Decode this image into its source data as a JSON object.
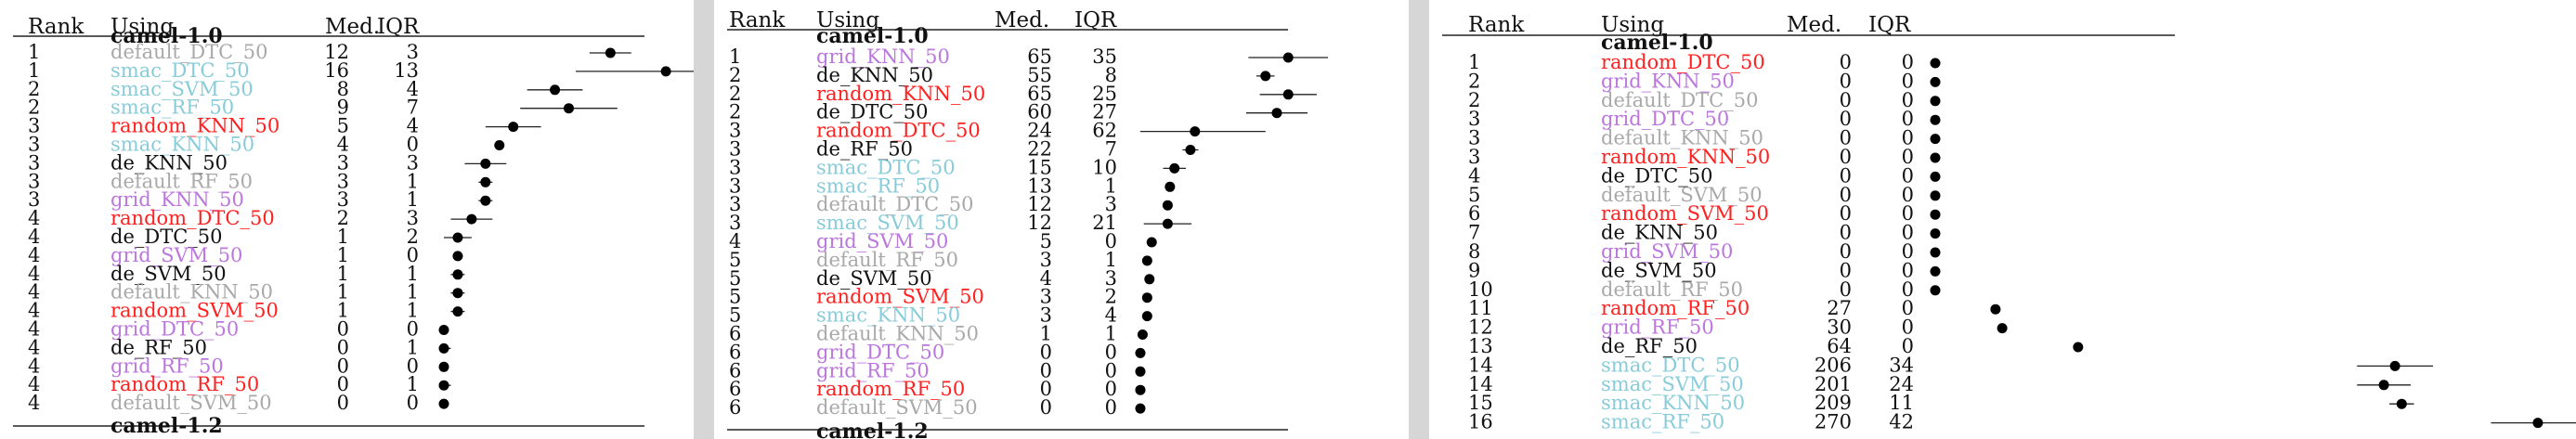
{
  "colors": {
    "default": "#a9a9a9",
    "smac": "#88ccd9",
    "random": "#ff2020",
    "grid": "#bb77dd",
    "de": "#111111"
  },
  "headers": {
    "rank": "Rank",
    "using": "Using",
    "med": "Med.",
    "iqr": "IQR"
  },
  "panels": [
    {
      "group": "camel-1.0",
      "footer_group": "camel-1.2",
      "chart_data": {
        "type": "table",
        "columns": [
          "Rank",
          "Using",
          "Med.",
          "IQR"
        ],
        "rows": [
          {
            "rank": "1",
            "using": "default_DTC_50",
            "family": "default",
            "med": 12,
            "iqr": 3
          },
          {
            "rank": "1",
            "using": "smac_DTC_50",
            "family": "smac",
            "med": 16,
            "iqr": 13
          },
          {
            "rank": "2",
            "using": "smac_SVM_50",
            "family": "smac",
            "med": 8,
            "iqr": 4
          },
          {
            "rank": "2",
            "using": "smac_RF_50",
            "family": "smac",
            "med": 9,
            "iqr": 7
          },
          {
            "rank": "3",
            "using": "random_KNN_50",
            "family": "random",
            "med": 5,
            "iqr": 4
          },
          {
            "rank": "3",
            "using": "smac_KNN_50",
            "family": "smac",
            "med": 4,
            "iqr": 0
          },
          {
            "rank": "3",
            "using": "de_KNN_50",
            "family": "de",
            "med": 3,
            "iqr": 3
          },
          {
            "rank": "3",
            "using": "default_RF_50",
            "family": "default",
            "med": 3,
            "iqr": 1
          },
          {
            "rank": "3",
            "using": "grid_KNN_50",
            "family": "grid",
            "med": 3,
            "iqr": 1
          },
          {
            "rank": "4",
            "using": "random_DTC_50",
            "family": "random",
            "med": 2,
            "iqr": 3
          },
          {
            "rank": "4",
            "using": "de_DTC_50",
            "family": "de",
            "med": 1,
            "iqr": 2
          },
          {
            "rank": "4",
            "using": "grid_SVM_50",
            "family": "grid",
            "med": 1,
            "iqr": 0
          },
          {
            "rank": "4",
            "using": "de_SVM_50",
            "family": "de",
            "med": 1,
            "iqr": 1
          },
          {
            "rank": "4",
            "using": "default_KNN_50",
            "family": "default",
            "med": 1,
            "iqr": 1
          },
          {
            "rank": "4",
            "using": "random_SVM_50",
            "family": "random",
            "med": 1,
            "iqr": 1
          },
          {
            "rank": "4",
            "using": "grid_DTC_50",
            "family": "grid",
            "med": 0,
            "iqr": 0
          },
          {
            "rank": "4",
            "using": "de_RF_50",
            "family": "de",
            "med": 0,
            "iqr": 1
          },
          {
            "rank": "4",
            "using": "grid_RF_50",
            "family": "grid",
            "med": 0,
            "iqr": 0
          },
          {
            "rank": "4",
            "using": "random_RF_50",
            "family": "random",
            "med": 0,
            "iqr": 1
          },
          {
            "rank": "4",
            "using": "default_SVM_50",
            "family": "default",
            "med": 0,
            "iqr": 0
          }
        ]
      }
    },
    {
      "group": "camel-1.0",
      "footer_group": "camel-1.2",
      "chart_data": {
        "type": "table",
        "columns": [
          "Rank",
          "Using",
          "Med.",
          "IQR"
        ],
        "rows": [
          {
            "rank": "1",
            "using": "grid_KNN_50",
            "family": "grid",
            "med": 65,
            "iqr": 35
          },
          {
            "rank": "2",
            "using": "de_KNN_50",
            "family": "de",
            "med": 55,
            "iqr": 8
          },
          {
            "rank": "2",
            "using": "random_KNN_50",
            "family": "random",
            "med": 65,
            "iqr": 25
          },
          {
            "rank": "2",
            "using": "de_DTC_50",
            "family": "de",
            "med": 60,
            "iqr": 27
          },
          {
            "rank": "3",
            "using": "random_DTC_50",
            "family": "random",
            "med": 24,
            "iqr": 62
          },
          {
            "rank": "3",
            "using": "de_RF_50",
            "family": "de",
            "med": 22,
            "iqr": 7
          },
          {
            "rank": "3",
            "using": "smac_DTC_50",
            "family": "smac",
            "med": 15,
            "iqr": 10
          },
          {
            "rank": "3",
            "using": "smac_RF_50",
            "family": "smac",
            "med": 13,
            "iqr": 1
          },
          {
            "rank": "3",
            "using": "default_DTC_50",
            "family": "default",
            "med": 12,
            "iqr": 3
          },
          {
            "rank": "3",
            "using": "smac_SVM_50",
            "family": "smac",
            "med": 12,
            "iqr": 21
          },
          {
            "rank": "4",
            "using": "grid_SVM_50",
            "family": "grid",
            "med": 5,
            "iqr": 0
          },
          {
            "rank": "5",
            "using": "default_RF_50",
            "family": "default",
            "med": 3,
            "iqr": 1
          },
          {
            "rank": "5",
            "using": "de_SVM_50",
            "family": "de",
            "med": 4,
            "iqr": 3
          },
          {
            "rank": "5",
            "using": "random_SVM_50",
            "family": "random",
            "med": 3,
            "iqr": 2
          },
          {
            "rank": "5",
            "using": "smac_KNN_50",
            "family": "smac",
            "med": 3,
            "iqr": 4
          },
          {
            "rank": "6",
            "using": "default_KNN_50",
            "family": "default",
            "med": 1,
            "iqr": 1
          },
          {
            "rank": "6",
            "using": "grid_DTC_50",
            "family": "grid",
            "med": 0,
            "iqr": 0
          },
          {
            "rank": "6",
            "using": "grid_RF_50",
            "family": "grid",
            "med": 0,
            "iqr": 0
          },
          {
            "rank": "6",
            "using": "random_RF_50",
            "family": "random",
            "med": 0,
            "iqr": 0
          },
          {
            "rank": "6",
            "using": "default_SVM_50",
            "family": "default",
            "med": 0,
            "iqr": 0
          }
        ]
      }
    },
    {
      "group": "camel-1.0",
      "footer_group": "",
      "chart_data": {
        "type": "table",
        "columns": [
          "Rank",
          "Using",
          "Med.",
          "IQR"
        ],
        "rows": [
          {
            "rank": "1",
            "using": "random_DTC_50",
            "family": "random",
            "med": 0,
            "iqr": 0
          },
          {
            "rank": "2",
            "using": "grid_KNN_50",
            "family": "grid",
            "med": 0,
            "iqr": 0
          },
          {
            "rank": "2",
            "using": "default_DTC_50",
            "family": "default",
            "med": 0,
            "iqr": 0
          },
          {
            "rank": "3",
            "using": "grid_DTC_50",
            "family": "grid",
            "med": 0,
            "iqr": 0
          },
          {
            "rank": "3",
            "using": "default_KNN_50",
            "family": "default",
            "med": 0,
            "iqr": 0
          },
          {
            "rank": "3",
            "using": "random_KNN_50",
            "family": "random",
            "med": 0,
            "iqr": 0
          },
          {
            "rank": "4",
            "using": "de_DTC_50",
            "family": "de",
            "med": 0,
            "iqr": 0
          },
          {
            "rank": "5",
            "using": "default_SVM_50",
            "family": "default",
            "med": 0,
            "iqr": 0
          },
          {
            "rank": "6",
            "using": "random_SVM_50",
            "family": "random",
            "med": 0,
            "iqr": 0
          },
          {
            "rank": "7",
            "using": "de_KNN_50",
            "family": "de",
            "med": 0,
            "iqr": 0
          },
          {
            "rank": "8",
            "using": "grid_SVM_50",
            "family": "grid",
            "med": 0,
            "iqr": 0
          },
          {
            "rank": "9",
            "using": "de_SVM_50",
            "family": "de",
            "med": 0,
            "iqr": 0
          },
          {
            "rank": "10",
            "using": "default_RF_50",
            "family": "default",
            "med": 0,
            "iqr": 0
          },
          {
            "rank": "11",
            "using": "random_RF_50",
            "family": "random",
            "med": 27,
            "iqr": 0
          },
          {
            "rank": "12",
            "using": "grid_RF_50",
            "family": "grid",
            "med": 30,
            "iqr": 0
          },
          {
            "rank": "13",
            "using": "de_RF_50",
            "family": "de",
            "med": 64,
            "iqr": 0
          },
          {
            "rank": "14",
            "using": "smac_DTC_50",
            "family": "smac",
            "med": 206,
            "iqr": 34
          },
          {
            "rank": "14",
            "using": "smac_SVM_50",
            "family": "smac",
            "med": 201,
            "iqr": 24
          },
          {
            "rank": "15",
            "using": "smac_KNN_50",
            "family": "smac",
            "med": 209,
            "iqr": 11
          },
          {
            "rank": "16",
            "using": "smac_RF_50",
            "family": "smac",
            "med": 270,
            "iqr": 42
          }
        ]
      }
    }
  ]
}
